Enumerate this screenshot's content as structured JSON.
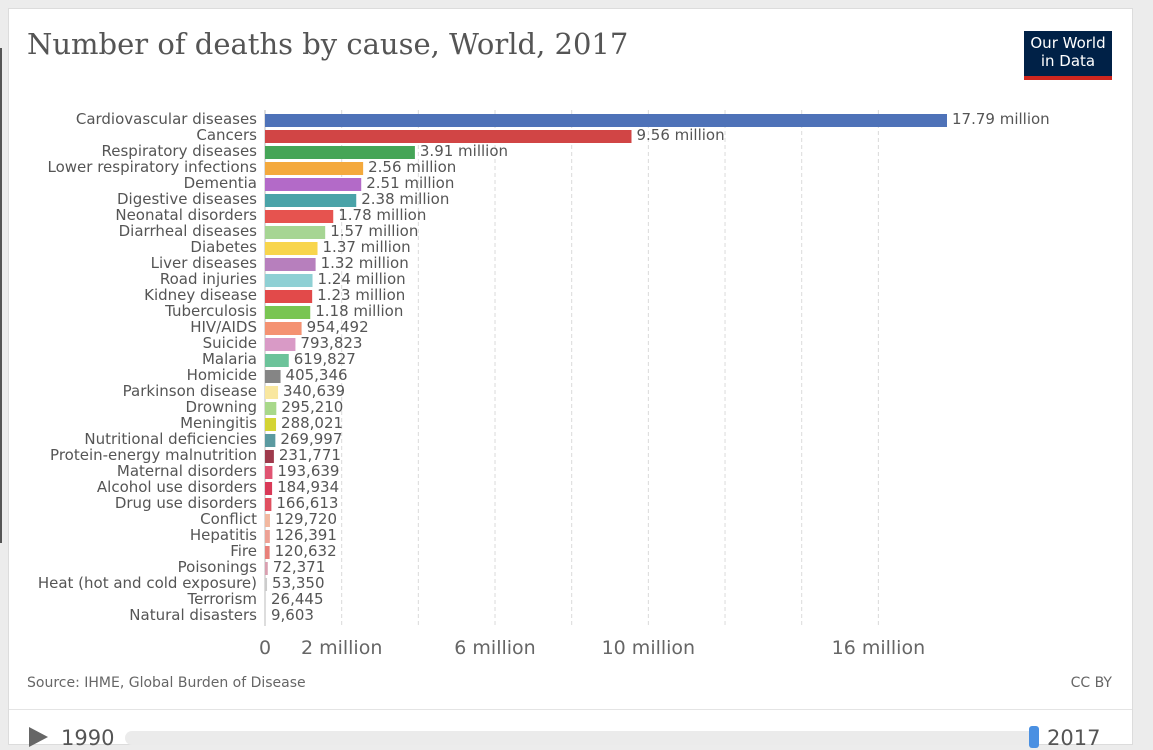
{
  "title": "Number of deaths by cause, World, 2017",
  "logo": {
    "line1": "Our World",
    "line2": "in Data"
  },
  "source": "Source: IHME, Global Burden of Disease",
  "license": "CC BY",
  "timeline": {
    "start": "1990",
    "end": "2017",
    "selected_fraction": 1.0
  },
  "chart_data": {
    "type": "bar",
    "orientation": "horizontal",
    "title": "Number of deaths by cause, World, 2017",
    "xlabel": "",
    "ylabel": "",
    "xlim": [
      0,
      18500000
    ],
    "xticks": [
      {
        "value": 0,
        "label": "0"
      },
      {
        "value": 2000000,
        "label": "2 million"
      },
      {
        "value": 6000000,
        "label": "6 million"
      },
      {
        "value": 10000000,
        "label": "10 million"
      },
      {
        "value": 16000000,
        "label": "16 million"
      }
    ],
    "gridlines": [
      2000000,
      4000000,
      6000000,
      8000000,
      10000000,
      12000000,
      14000000,
      16000000
    ],
    "categories": [
      "Cardiovascular diseases",
      "Cancers",
      "Respiratory diseases",
      "Lower respiratory infections",
      "Dementia",
      "Digestive diseases",
      "Neonatal disorders",
      "Diarrheal diseases",
      "Diabetes",
      "Liver diseases",
      "Road injuries",
      "Kidney disease",
      "Tuberculosis",
      "HIV/AIDS",
      "Suicide",
      "Malaria",
      "Homicide",
      "Parkinson disease",
      "Drowning",
      "Meningitis",
      "Nutritional deficiencies",
      "Protein-energy malnutrition",
      "Maternal disorders",
      "Alcohol use disorders",
      "Drug use disorders",
      "Conflict",
      "Hepatitis",
      "Fire",
      "Poisonings",
      "Heat (hot and cold exposure)",
      "Terrorism",
      "Natural disasters"
    ],
    "values": [
      17790000,
      9560000,
      3910000,
      2560000,
      2510000,
      2380000,
      1780000,
      1570000,
      1370000,
      1320000,
      1240000,
      1230000,
      1180000,
      954492,
      793823,
      619827,
      405346,
      340639,
      295210,
      288021,
      269997,
      231771,
      193639,
      184934,
      166613,
      129720,
      126391,
      120632,
      72371,
      53350,
      26445,
      9603
    ],
    "value_labels": [
      "17.79 million",
      "9.56 million",
      "3.91 million",
      "2.56 million",
      "2.51 million",
      "2.38 million",
      "1.78 million",
      "1.57 million",
      "1.37 million",
      "1.32 million",
      "1.24 million",
      "1.23 million",
      "1.18 million",
      "954,492",
      "793,823",
      "619,827",
      "405,346",
      "340,639",
      "295,210",
      "288,021",
      "269,997",
      "231,771",
      "193,639",
      "184,934",
      "166,613",
      "129,720",
      "126,391",
      "120,632",
      "72,371",
      "53,350",
      "26,445",
      "9,603"
    ],
    "colors": [
      "#4e72b8",
      "#d14545",
      "#45a557",
      "#f4a93d",
      "#b36ac8",
      "#4aa3a8",
      "#e6534f",
      "#a6d593",
      "#f8d54c",
      "#b77fbd",
      "#8fd0d4",
      "#e24a4a",
      "#79c552",
      "#f49272",
      "#d99ac6",
      "#6cc39a",
      "#858585",
      "#f9e79f",
      "#a8d88a",
      "#d4d434",
      "#5b9aa0",
      "#9e3a4c",
      "#e05472",
      "#d93a58",
      "#e05060",
      "#f2b8a0",
      "#eda195",
      "#e8807a",
      "#d9a0b0",
      "#cccccc",
      "#dddddd",
      "#dddddd"
    ]
  }
}
